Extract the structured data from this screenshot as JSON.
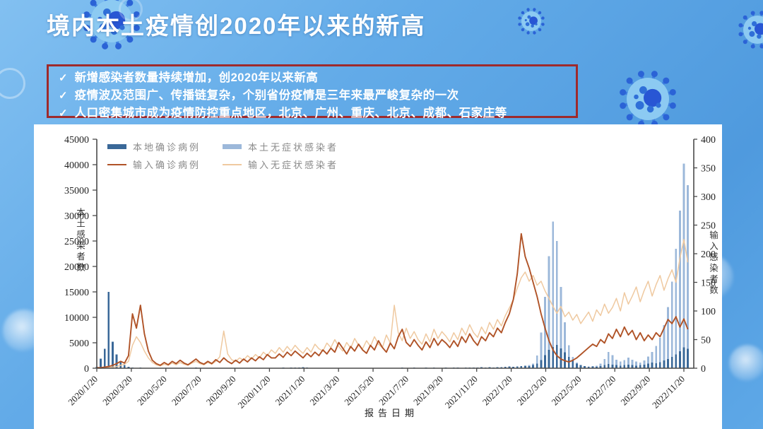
{
  "slide": {
    "title": "境内本土疫情创2020年以来的新高",
    "bullet_marker": "✓",
    "bullets": [
      "新增感染者数量持续增加，创2020年以来新高",
      "疫情波及范围广、传播链复杂，个别省份疫情是三年来最严峻复杂的一次",
      "人口密集城市成为疫情防控重点地区，北京、广州、重庆、北京、成都、石家庄等"
    ],
    "colors": {
      "background_blue": "#5ba5e6",
      "title_text": "#ffffff",
      "keypoints_border_red": "#9e2a2c",
      "panel_white": "#ffffff",
      "virus_icon_blue": "#3f7fe0"
    }
  },
  "chart_data": {
    "type": "mixed-bar-line",
    "grid": false,
    "legend_position": "top-left",
    "x_axis": {
      "label": "报告日期",
      "tick_labels": [
        "2020/1/20",
        "2020/3/20",
        "2020/5/20",
        "2020/7/20",
        "2020/9/20",
        "2020/11/20",
        "2021/1/20",
        "2021/3/20",
        "2021/5/20",
        "2021/7/20",
        "2021/9/20",
        "2021/11/20",
        "2022/1/20",
        "2022/3/20",
        "2022/5/20",
        "2022/7/20",
        "2022/9/20",
        "2022/11/20"
      ],
      "unit": "week_sampled_values"
    },
    "y_left": {
      "label": "本土感染者数",
      "min": 0,
      "max": 45000,
      "step": 5000
    },
    "y_right": {
      "label": "输入感染者数",
      "min": 0,
      "max": 400,
      "step": 50
    },
    "series": [
      {
        "name": "本地确诊病例",
        "type": "bar",
        "axis": "left",
        "color": "#3a6898",
        "values": [
          300,
          1900,
          3800,
          15000,
          5200,
          2700,
          1400,
          600,
          280,
          120,
          60,
          120,
          40,
          30,
          20,
          60,
          30,
          20,
          15,
          10,
          25,
          15,
          10,
          30,
          90,
          120,
          60,
          25,
          15,
          10,
          20,
          45,
          25,
          15,
          10,
          8,
          15,
          10,
          20,
          15,
          30,
          60,
          40,
          25,
          50,
          90,
          70,
          110,
          90,
          130,
          110,
          150,
          180,
          130,
          80,
          40,
          20,
          15,
          10,
          8,
          15,
          10,
          20,
          15,
          10,
          25,
          15,
          30,
          20,
          35,
          25,
          15,
          30,
          60,
          40,
          90,
          60,
          110,
          80,
          60,
          120,
          90,
          60,
          110,
          70,
          130,
          100,
          80,
          140,
          100,
          160,
          120,
          90,
          150,
          110,
          170,
          130,
          180,
          140,
          200,
          160,
          220,
          180,
          260,
          320,
          280,
          380,
          420,
          500,
          440,
          600,
          900,
          1600,
          2600,
          3600,
          4200,
          4600,
          3900,
          3100,
          2200,
          1500,
          900,
          600,
          400,
          300,
          350,
          300,
          450,
          600,
          800,
          700,
          600,
          500,
          600,
          700,
          600,
          500,
          600,
          700,
          900,
          1100,
          1000,
          1200,
          1500,
          1800,
          2200,
          2700,
          3300,
          4100,
          3800
        ]
      },
      {
        "name": "本土无症状感染者",
        "type": "bar",
        "axis": "left",
        "color": "#9cb8da",
        "values": [
          0,
          0,
          0,
          50,
          150,
          100,
          60,
          30,
          20,
          10,
          10,
          15,
          10,
          8,
          5,
          10,
          8,
          5,
          5,
          5,
          8,
          5,
          5,
          10,
          15,
          20,
          10,
          5,
          5,
          5,
          8,
          12,
          8,
          5,
          5,
          5,
          8,
          5,
          10,
          8,
          15,
          25,
          20,
          15,
          25,
          40,
          30,
          50,
          40,
          60,
          50,
          70,
          80,
          60,
          40,
          20,
          10,
          8,
          5,
          5,
          10,
          8,
          12,
          10,
          8,
          15,
          10,
          18,
          12,
          20,
          15,
          10,
          18,
          30,
          20,
          45,
          30,
          55,
          40,
          30,
          60,
          45,
          30,
          55,
          35,
          65,
          50,
          40,
          70,
          50,
          80,
          60,
          45,
          75,
          55,
          85,
          65,
          90,
          70,
          100,
          80,
          110,
          90,
          130,
          160,
          200,
          260,
          350,
          450,
          600,
          900,
          2500,
          7000,
          14000,
          22000,
          28800,
          25000,
          16000,
          9000,
          4500,
          2200,
          1100,
          600,
          400,
          350,
          400,
          500,
          900,
          1800,
          3200,
          2600,
          1700,
          1300,
          1600,
          2100,
          1700,
          1300,
          1100,
          1500,
          2300,
          3200,
          4400,
          6000,
          8500,
          12000,
          17000,
          23500,
          31000,
          40200,
          36000
        ]
      },
      {
        "name": "输入确诊病例",
        "type": "line",
        "axis": "right",
        "color": "#b05327",
        "values": [
          1,
          1,
          2,
          3,
          5,
          8,
          12,
          9,
          22,
          95,
          70,
          110,
          60,
          30,
          14,
          8,
          5,
          10,
          6,
          12,
          8,
          14,
          9,
          6,
          11,
          16,
          10,
          7,
          12,
          8,
          15,
          10,
          18,
          12,
          8,
          14,
          9,
          16,
          11,
          18,
          13,
          20,
          15,
          24,
          18,
          18,
          25,
          19,
          28,
          22,
          30,
          24,
          18,
          26,
          20,
          28,
          22,
          32,
          25,
          35,
          28,
          45,
          35,
          25,
          38,
          30,
          42,
          32,
          26,
          40,
          32,
          48,
          36,
          28,
          44,
          34,
          55,
          68,
          45,
          38,
          50,
          40,
          32,
          46,
          36,
          52,
          40,
          50,
          44,
          36,
          48,
          38,
          55,
          45,
          60,
          48,
          40,
          55,
          48,
          62,
          55,
          70,
          62,
          80,
          95,
          120,
          165,
          235,
          195,
          175,
          150,
          125,
          95,
          70,
          48,
          32,
          22,
          16,
          13,
          11,
          14,
          18,
          24,
          30,
          36,
          42,
          38,
          50,
          44,
          60,
          52,
          68,
          55,
          72,
          58,
          66,
          50,
          62,
          48,
          58,
          50,
          62,
          55,
          70,
          85,
          78,
          90,
          72,
          86,
          68
        ]
      },
      {
        "name": "输入无症状感染者",
        "type": "line",
        "axis": "right",
        "color": "#efc9a0",
        "values": [
          0,
          0,
          1,
          1,
          2,
          3,
          5,
          7,
          12,
          40,
          55,
          45,
          30,
          18,
          10,
          6,
          4,
          7,
          5,
          9,
          6,
          10,
          7,
          5,
          9,
          12,
          8,
          6,
          10,
          7,
          12,
          20,
          65,
          25,
          15,
          12,
          18,
          14,
          22,
          16,
          24,
          18,
          28,
          22,
          32,
          26,
          36,
          28,
          38,
          30,
          40,
          32,
          26,
          36,
          28,
          42,
          34,
          30,
          44,
          36,
          50,
          38,
          30,
          45,
          35,
          52,
          40,
          34,
          48,
          38,
          55,
          42,
          36,
          58,
          44,
          110,
          62,
          48,
          70,
          52,
          64,
          50,
          42,
          60,
          46,
          68,
          52,
          64,
          56,
          46,
          62,
          50,
          70,
          58,
          76,
          62,
          54,
          72,
          60,
          80,
          68,
          85,
          74,
          92,
          105,
          120,
          140,
          158,
          168,
          152,
          162,
          145,
          152,
          135,
          122,
          108,
          96,
          108,
          90,
          98,
          84,
          94,
          78,
          88,
          98,
          82,
          102,
          92,
          112,
          96,
          106,
          122,
          100,
          132,
          112,
          126,
          142,
          116,
          136,
          152,
          126,
          146,
          162,
          136,
          156,
          172,
          150,
          192,
          225,
          185
        ]
      }
    ]
  }
}
